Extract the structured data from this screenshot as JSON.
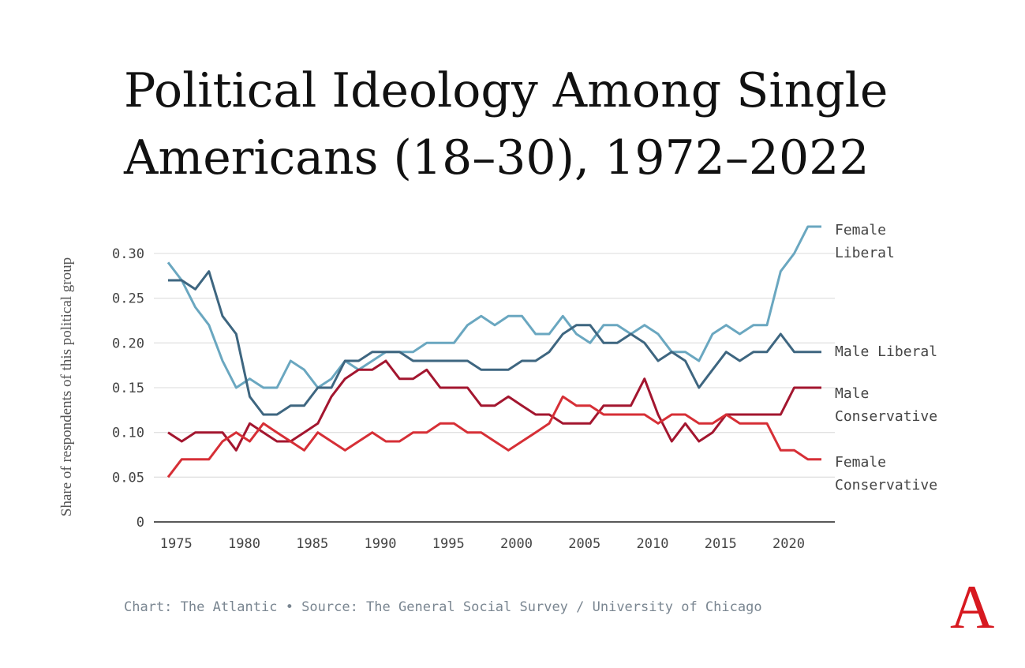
{
  "chart_data": {
    "type": "line",
    "title_lines": [
      "Political Ideology Among Single",
      "Americans (18–30), 1972–2022"
    ],
    "xlabel": "",
    "ylabel": "Share of respondents of this political group",
    "xlim": [
      1974,
      2022
    ],
    "ylim": [
      0,
      0.33
    ],
    "yticks": [
      0,
      0.05,
      0.1,
      0.15,
      0.2,
      0.25,
      0.3
    ],
    "ytick_labels": [
      "0",
      "0.05",
      "0.10",
      "0.15",
      "0.20",
      "0.25",
      "0.30"
    ],
    "xticks": [
      1975,
      1980,
      1985,
      1990,
      1995,
      2000,
      2005,
      2010,
      2015,
      2020
    ],
    "xtick_labels": [
      "1975",
      "1980",
      "1985",
      "1990",
      "1995",
      "2000",
      "2005",
      "2010",
      "2015",
      "2020"
    ],
    "grid": true,
    "x_start": 1974,
    "series": [
      {
        "name": "Female Liberal",
        "label_lines": [
          "Female",
          "Liberal"
        ],
        "color": "#6aa7c0",
        "values": [
          0.29,
          0.27,
          0.24,
          0.22,
          0.18,
          0.15,
          0.16,
          0.15,
          0.15,
          0.18,
          0.17,
          0.15,
          0.16,
          0.18,
          0.17,
          0.18,
          0.19,
          0.19,
          0.19,
          0.2,
          0.2,
          0.2,
          0.22,
          0.23,
          0.22,
          0.23,
          0.23,
          0.21,
          0.21,
          0.23,
          0.21,
          0.2,
          0.22,
          0.22,
          0.21,
          0.22,
          0.21,
          0.19,
          0.19,
          0.18,
          0.21,
          0.22,
          0.21,
          0.22,
          0.22,
          0.28,
          0.3,
          0.33,
          0.33
        ]
      },
      {
        "name": "Male Liberal",
        "label_lines": [
          "Male Liberal"
        ],
        "color": "#3e6680",
        "values": [
          0.27,
          0.27,
          0.26,
          0.28,
          0.23,
          0.21,
          0.14,
          0.12,
          0.12,
          0.13,
          0.13,
          0.15,
          0.15,
          0.18,
          0.18,
          0.19,
          0.19,
          0.19,
          0.18,
          0.18,
          0.18,
          0.18,
          0.18,
          0.17,
          0.17,
          0.17,
          0.18,
          0.18,
          0.19,
          0.21,
          0.22,
          0.22,
          0.2,
          0.2,
          0.21,
          0.2,
          0.18,
          0.19,
          0.18,
          0.15,
          0.17,
          0.19,
          0.18,
          0.19,
          0.19,
          0.21,
          0.19,
          0.19,
          0.19
        ]
      },
      {
        "name": "Male Conservative",
        "label_lines": [
          "Male",
          "Conservative"
        ],
        "color": "#a3162f",
        "values": [
          0.1,
          0.09,
          0.1,
          0.1,
          0.1,
          0.08,
          0.11,
          0.1,
          0.09,
          0.09,
          0.1,
          0.11,
          0.14,
          0.16,
          0.17,
          0.17,
          0.18,
          0.16,
          0.16,
          0.17,
          0.15,
          0.15,
          0.15,
          0.13,
          0.13,
          0.14,
          0.13,
          0.12,
          0.12,
          0.11,
          0.11,
          0.11,
          0.13,
          0.13,
          0.13,
          0.16,
          0.12,
          0.09,
          0.11,
          0.09,
          0.1,
          0.12,
          0.12,
          0.12,
          0.12,
          0.12,
          0.15,
          0.15,
          0.15
        ]
      },
      {
        "name": "Female Conservative",
        "label_lines": [
          "Female",
          "Conservative"
        ],
        "color": "#d62f36",
        "values": [
          0.05,
          0.07,
          0.07,
          0.07,
          0.09,
          0.1,
          0.09,
          0.11,
          0.1,
          0.09,
          0.08,
          0.1,
          0.09,
          0.08,
          0.09,
          0.1,
          0.09,
          0.09,
          0.1,
          0.1,
          0.11,
          0.11,
          0.1,
          0.1,
          0.09,
          0.08,
          0.09,
          0.1,
          0.11,
          0.14,
          0.13,
          0.13,
          0.12,
          0.12,
          0.12,
          0.12,
          0.11,
          0.12,
          0.12,
          0.11,
          0.11,
          0.12,
          0.11,
          0.11,
          0.11,
          0.08,
          0.08,
          0.07,
          0.07
        ]
      }
    ],
    "footer": "Chart: The Atlantic • Source: The General Social Survey / University of Chicago",
    "logo_text": "A"
  }
}
